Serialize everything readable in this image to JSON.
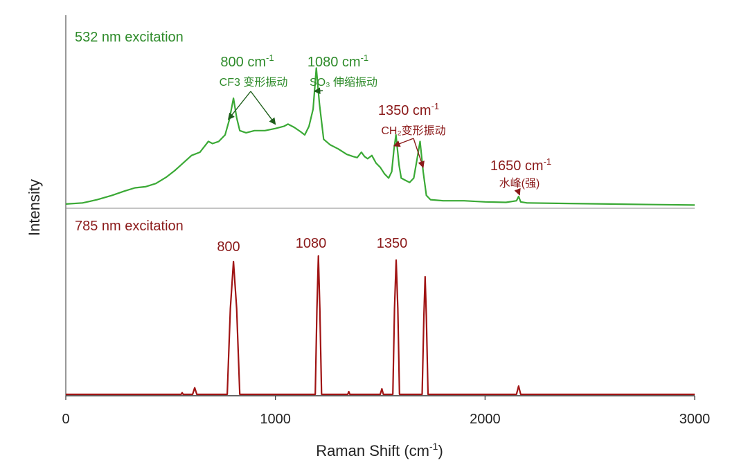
{
  "chart_data": {
    "type": "line",
    "xlabel": "Raman Shift (cm",
    "xlabel_sup": "-1",
    "xlabel_close": ")",
    "ylabel": "Intensity",
    "xlim": [
      0,
      3000
    ],
    "x_ticks": [
      0,
      1000,
      2000,
      3000
    ],
    "grid": false,
    "colors": {
      "green": "#3aa935",
      "green_text": "#2e8b2a",
      "red": "#a01414",
      "red_text": "#8b1a1a"
    },
    "series": [
      {
        "name": "532 nm excitation",
        "color": "#3aa935",
        "points": [
          [
            0,
            0.02
          ],
          [
            80,
            0.03
          ],
          [
            150,
            0.06
          ],
          [
            220,
            0.1
          ],
          [
            280,
            0.14
          ],
          [
            330,
            0.17
          ],
          [
            380,
            0.18
          ],
          [
            430,
            0.21
          ],
          [
            480,
            0.27
          ],
          [
            520,
            0.33
          ],
          [
            560,
            0.4
          ],
          [
            600,
            0.47
          ],
          [
            640,
            0.5
          ],
          [
            660,
            0.55
          ],
          [
            680,
            0.6
          ],
          [
            700,
            0.58
          ],
          [
            730,
            0.6
          ],
          [
            760,
            0.66
          ],
          [
            780,
            0.8
          ],
          [
            800,
            1.0
          ],
          [
            815,
            0.82
          ],
          [
            830,
            0.7
          ],
          [
            860,
            0.68
          ],
          [
            900,
            0.7
          ],
          [
            950,
            0.7
          ],
          [
            1000,
            0.72
          ],
          [
            1040,
            0.74
          ],
          [
            1060,
            0.76
          ],
          [
            1090,
            0.73
          ],
          [
            1120,
            0.69
          ],
          [
            1140,
            0.66
          ],
          [
            1160,
            0.74
          ],
          [
            1180,
            0.9
          ],
          [
            1195,
            1.28
          ],
          [
            1210,
            0.95
          ],
          [
            1230,
            0.62
          ],
          [
            1260,
            0.57
          ],
          [
            1300,
            0.53
          ],
          [
            1340,
            0.48
          ],
          [
            1370,
            0.46
          ],
          [
            1390,
            0.45
          ],
          [
            1410,
            0.5
          ],
          [
            1425,
            0.46
          ],
          [
            1440,
            0.44
          ],
          [
            1460,
            0.47
          ],
          [
            1480,
            0.4
          ],
          [
            1500,
            0.36
          ],
          [
            1520,
            0.3
          ],
          [
            1540,
            0.26
          ],
          [
            1555,
            0.32
          ],
          [
            1565,
            0.52
          ],
          [
            1575,
            0.66
          ],
          [
            1590,
            0.38
          ],
          [
            1600,
            0.26
          ],
          [
            1620,
            0.24
          ],
          [
            1640,
            0.22
          ],
          [
            1660,
            0.26
          ],
          [
            1675,
            0.43
          ],
          [
            1690,
            0.6
          ],
          [
            1705,
            0.32
          ],
          [
            1720,
            0.1
          ],
          [
            1740,
            0.06
          ],
          [
            1800,
            0.05
          ],
          [
            1900,
            0.05
          ],
          [
            2000,
            0.04
          ],
          [
            2100,
            0.035
          ],
          [
            2150,
            0.05
          ],
          [
            2160,
            0.09
          ],
          [
            2170,
            0.04
          ],
          [
            2200,
            0.03
          ],
          [
            2400,
            0.025
          ],
          [
            2600,
            0.02
          ],
          [
            2800,
            0.015
          ],
          [
            3000,
            0.01
          ]
        ]
      },
      {
        "name": "785 nm excitation",
        "color": "#a01414",
        "points": [
          [
            0,
            0
          ],
          [
            550,
            0
          ],
          [
            555,
            0.012
          ],
          [
            560,
            0
          ],
          [
            605,
            0
          ],
          [
            615,
            0.048
          ],
          [
            625,
            0
          ],
          [
            770,
            0
          ],
          [
            785,
            0.62
          ],
          [
            800,
            0.96
          ],
          [
            815,
            0.62
          ],
          [
            830,
            0
          ],
          [
            1190,
            0
          ],
          [
            1198,
            0.62
          ],
          [
            1205,
            1.0
          ],
          [
            1212,
            0.62
          ],
          [
            1220,
            0
          ],
          [
            1345,
            0
          ],
          [
            1350,
            0.02
          ],
          [
            1355,
            0
          ],
          [
            1500,
            0
          ],
          [
            1508,
            0.04
          ],
          [
            1515,
            0
          ],
          [
            1560,
            0
          ],
          [
            1568,
            0.62
          ],
          [
            1576,
            0.97
          ],
          [
            1584,
            0.62
          ],
          [
            1592,
            0
          ],
          [
            1700,
            0
          ],
          [
            1708,
            0.56
          ],
          [
            1714,
            0.85
          ],
          [
            1720,
            0.56
          ],
          [
            1728,
            0
          ],
          [
            2150,
            0
          ],
          [
            2160,
            0.06
          ],
          [
            2170,
            0
          ],
          [
            3000,
            0
          ]
        ]
      }
    ],
    "annotations": {
      "top": [
        {
          "id": "g800",
          "label": "800 cm",
          "sup": "-1",
          "sublabel": "CF3 变形振动",
          "targets_x": [
            775,
            1000
          ]
        },
        {
          "id": "g1080",
          "label": "1080 cm",
          "sup": "-1",
          "sublabel": "SO₃ 伸缩振动",
          "targets_x": [
            1185
          ]
        },
        {
          "id": "g1350",
          "label": "1350 cm",
          "sup": "-1",
          "sublabel": "CH₂变形振动",
          "targets_x": [
            1565,
            1705
          ]
        },
        {
          "id": "g1650",
          "label": "1650 cm",
          "sup": "-1",
          "sublabel": "水峰(强)",
          "targets_x": [
            2165
          ]
        }
      ],
      "bottom": [
        {
          "id": "r800",
          "label": "800",
          "x": 785
        },
        {
          "id": "r1080",
          "label": "1080",
          "x": 1205
        },
        {
          "id": "r1350",
          "label": "1350",
          "x": 1576
        }
      ]
    }
  }
}
